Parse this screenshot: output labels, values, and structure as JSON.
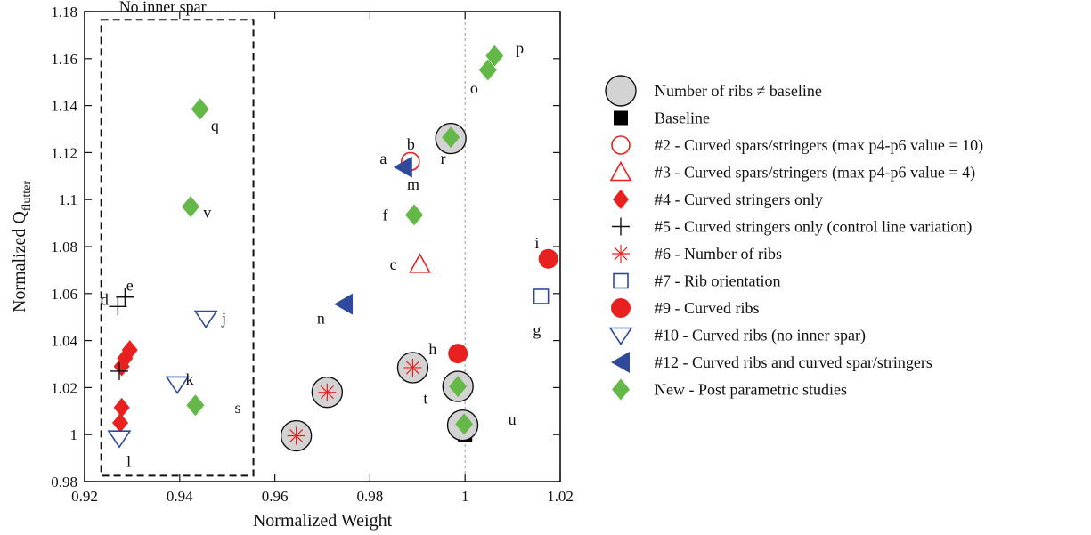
{
  "chart_data": {
    "type": "scatter",
    "xlabel": "Normalized Weight",
    "ylabel": "Normalized Q",
    "ylabel_sub": "flutter",
    "xlim": [
      0.92,
      1.02
    ],
    "ylim": [
      0.98,
      1.18
    ],
    "xticks": [
      {
        "value": 0.92,
        "label": "0.92"
      },
      {
        "value": 0.94,
        "label": "0.94"
      },
      {
        "value": 0.96,
        "label": "0.96"
      },
      {
        "value": 0.98,
        "label": "0.98"
      },
      {
        "value": 1.0,
        "label": "1"
      },
      {
        "value": 1.02,
        "label": "1.02"
      }
    ],
    "yticks": [
      {
        "value": 0.98,
        "label": "0.98"
      },
      {
        "value": 1.0,
        "label": "1"
      },
      {
        "value": 1.02,
        "label": "1.02"
      },
      {
        "value": 1.04,
        "label": "1.04"
      },
      {
        "value": 1.06,
        "label": "1.06"
      },
      {
        "value": 1.08,
        "label": "1.08"
      },
      {
        "value": 1.1,
        "label": "1.1"
      },
      {
        "value": 1.12,
        "label": "1.12"
      },
      {
        "value": 1.14,
        "label": "1.14"
      },
      {
        "value": 1.16,
        "label": "1.16"
      },
      {
        "value": 1.18,
        "label": "1.18"
      }
    ],
    "reference_line_x": 1.0,
    "region": {
      "label": "No inner spar",
      "x": [
        0.9235,
        0.9555
      ],
      "y": [
        0.9825,
        1.1765
      ]
    },
    "colors": {
      "red": "#e8201f",
      "blue": "#2f4a9c",
      "green": "#64b847",
      "gray_fill": "#d3d3d3"
    },
    "legend": [
      {
        "marker": "circle-gray",
        "text": "Number of ribs ≠ baseline"
      },
      {
        "marker": "square-black",
        "text": "Baseline"
      },
      {
        "marker": "circle-red-open",
        "text": "#2 - Curved spars/stringers (max p4-p6 value = 10)"
      },
      {
        "marker": "triangle-red-open",
        "text": "#3 - Curved spars/stringers (max p4-p6 value = 4)"
      },
      {
        "marker": "diamond-red",
        "text": "#4 - Curved stringers only"
      },
      {
        "marker": "plus-black",
        "text": "#5 - Curved stringers only (control line variation)"
      },
      {
        "marker": "asterisk-red",
        "text": "#6 - Number of ribs"
      },
      {
        "marker": "square-blue-open",
        "text": "#7 - Rib orientation"
      },
      {
        "marker": "circle-red",
        "text": "#9 - Curved ribs"
      },
      {
        "marker": "triangle-down-blue-open",
        "text": "#10 - Curved ribs (no inner spar)"
      },
      {
        "marker": "triangle-left-blue",
        "text": "#12 - Curved ribs and curved spar/stringers"
      },
      {
        "marker": "diamond-green",
        "text": "New - Post parametric studies"
      }
    ],
    "points": [
      {
        "marker": "square-black",
        "x": 1.0,
        "y": 1.0
      },
      {
        "marker": "circle-red-open",
        "x": 0.9885,
        "y": 1.1162
      },
      {
        "marker": "triangle-red-open",
        "x": 0.9905,
        "y": 1.0725
      },
      {
        "marker": "diamond-red",
        "x": 0.9275,
        "y": 1.005
      },
      {
        "marker": "diamond-red",
        "x": 0.9278,
        "y": 1.0115
      },
      {
        "marker": "diamond-red",
        "x": 0.9278,
        "y": 1.029
      },
      {
        "marker": "diamond-red",
        "x": 0.9285,
        "y": 1.0325
      },
      {
        "marker": "diamond-red",
        "x": 0.9295,
        "y": 1.036
      },
      {
        "marker": "plus-black",
        "x": 0.9273,
        "y": 1.027
      },
      {
        "marker": "plus-black",
        "x": 0.927,
        "y": 1.0545
      },
      {
        "marker": "plus-black",
        "x": 0.9285,
        "y": 1.0585
      },
      {
        "marker": "square-blue-open",
        "x": 1.016,
        "y": 1.0588
      },
      {
        "marker": "circle-red",
        "x": 1.0175,
        "y": 1.0748
      },
      {
        "marker": "circle-red",
        "x": 0.9985,
        "y": 1.0345
      },
      {
        "marker": "triangle-down-blue-open",
        "x": 0.9273,
        "y": 0.9985
      },
      {
        "marker": "triangle-down-blue-open",
        "x": 0.9395,
        "y": 1.0215
      },
      {
        "marker": "triangle-down-blue-open",
        "x": 0.9455,
        "y": 1.0495
      },
      {
        "marker": "triangle-left-blue",
        "x": 0.987,
        "y": 1.1138
      },
      {
        "marker": "triangle-left-blue",
        "x": 0.9745,
        "y": 1.0555
      },
      {
        "marker": "circle-gray",
        "x": 0.9645,
        "y": 0.9995
      },
      {
        "marker": "circle-gray",
        "x": 0.971,
        "y": 1.018
      },
      {
        "marker": "circle-gray",
        "x": 0.989,
        "y": 1.0285
      },
      {
        "marker": "circle-gray",
        "x": 0.997,
        "y": 1.126
      },
      {
        "marker": "circle-gray",
        "x": 0.9985,
        "y": 1.0205
      },
      {
        "marker": "circle-gray",
        "x": 0.9995,
        "y": 1.004
      },
      {
        "marker": "asterisk-red",
        "x": 0.9645,
        "y": 0.9995
      },
      {
        "marker": "asterisk-red",
        "x": 0.971,
        "y": 1.018
      },
      {
        "marker": "asterisk-red",
        "x": 0.989,
        "y": 1.0285
      },
      {
        "marker": "diamond-green",
        "x": 0.9443,
        "y": 1.1385
      },
      {
        "marker": "diamond-green",
        "x": 0.9423,
        "y": 1.097
      },
      {
        "marker": "diamond-green",
        "x": 0.9433,
        "y": 1.0125
      },
      {
        "marker": "diamond-green",
        "x": 0.997,
        "y": 1.1265
      },
      {
        "marker": "diamond-green",
        "x": 0.9893,
        "y": 1.0935
      },
      {
        "marker": "diamond-green",
        "x": 0.9985,
        "y": 1.0205
      },
      {
        "marker": "diamond-green",
        "x": 0.9998,
        "y": 1.0045
      },
      {
        "marker": "diamond-green",
        "x": 1.0048,
        "y": 1.1552
      },
      {
        "marker": "diamond-green",
        "x": 1.0062,
        "y": 1.1612
      }
    ],
    "annotations": [
      {
        "text": "a",
        "x": 0.9828,
        "y": 1.1175
      },
      {
        "text": "b",
        "x": 0.9886,
        "y": 1.1235
      },
      {
        "text": "c",
        "x": 0.9849,
        "y": 1.0725
      },
      {
        "text": "d",
        "x": 0.9242,
        "y": 1.0575
      },
      {
        "text": "e",
        "x": 0.9295,
        "y": 1.0635
      },
      {
        "text": "f",
        "x": 0.9832,
        "y": 1.0935
      },
      {
        "text": "g",
        "x": 1.0151,
        "y": 1.0445
      },
      {
        "text": "h",
        "x": 0.9932,
        "y": 1.0365
      },
      {
        "text": "i",
        "x": 1.0151,
        "y": 1.0815
      },
      {
        "text": "j",
        "x": 0.9493,
        "y": 1.0495
      },
      {
        "text": "k",
        "x": 0.9421,
        "y": 1.0235
      },
      {
        "text": "l",
        "x": 0.9293,
        "y": 0.9885
      },
      {
        "text": "m",
        "x": 0.9891,
        "y": 1.1065
      },
      {
        "text": "n",
        "x": 0.9697,
        "y": 1.0495
      },
      {
        "text": "o",
        "x": 1.0019,
        "y": 1.1475
      },
      {
        "text": "p",
        "x": 1.0115,
        "y": 1.1645
      },
      {
        "text": "q",
        "x": 0.9474,
        "y": 1.1315
      },
      {
        "text": "r",
        "x": 0.9954,
        "y": 1.1175
      },
      {
        "text": "s",
        "x": 0.9522,
        "y": 1.0115
      },
      {
        "text": "t",
        "x": 0.9917,
        "y": 1.0155
      },
      {
        "text": "u",
        "x": 1.0099,
        "y": 1.0065
      },
      {
        "text": "v",
        "x": 0.9458,
        "y": 1.0945
      }
    ]
  }
}
